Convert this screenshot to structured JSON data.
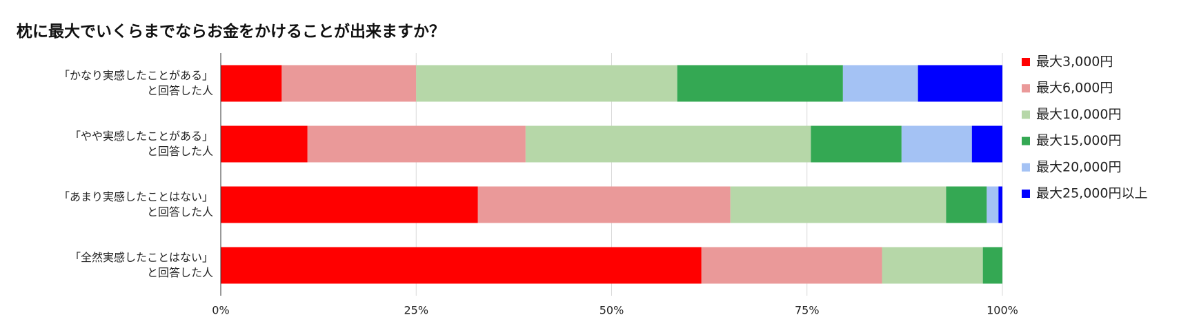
{
  "chart_data": {
    "type": "stacked-bar-horizontal",
    "title": "枕に最大でいくらまでならお金をかけることが出来ますか？",
    "categories": [
      "「かなり実感したことがある」\nと回答した人",
      "「やや実感したことがある」\nと回答した人",
      "「あまり実感したことはない」\nと回答した人",
      "「全然実感したことはない」\nと回答した人"
    ],
    "series": [
      {
        "name": "最大3,000円",
        "color": "#ff0000",
        "values": [
          7.8,
          11.1,
          32.9,
          61.5
        ]
      },
      {
        "name": "最大6,000円",
        "color": "#ea9999",
        "values": [
          17.2,
          27.9,
          32.3,
          23.1
        ]
      },
      {
        "name": "最大10,000円",
        "color": "#b6d7a8",
        "values": [
          33.4,
          36.5,
          27.6,
          12.9
        ]
      },
      {
        "name": "最大15,000円",
        "color": "#34a853",
        "values": [
          21.2,
          11.6,
          5.2,
          2.5
        ]
      },
      {
        "name": "最大20,000円",
        "color": "#a4c2f4",
        "values": [
          9.6,
          9.0,
          1.5,
          0
        ]
      },
      {
        "name": "最大25,000円以上",
        "color": "#0000ff",
        "values": [
          10.8,
          3.9,
          0.5,
          0
        ]
      }
    ],
    "xlim": [
      0,
      100
    ],
    "xticks": [
      {
        "value": 0,
        "label": "0%"
      },
      {
        "value": 25,
        "label": "25%"
      },
      {
        "value": 50,
        "label": "50%"
      },
      {
        "value": 75,
        "label": "75%"
      },
      {
        "value": 100,
        "label": "100%"
      }
    ],
    "grid": true,
    "legend": "right"
  }
}
